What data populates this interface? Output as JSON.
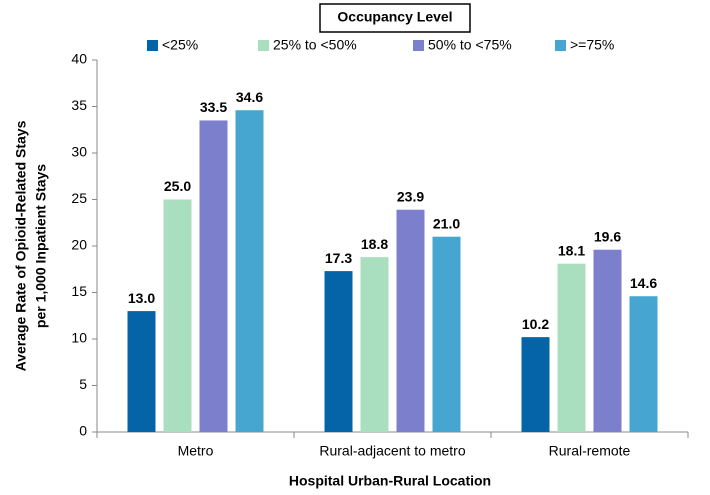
{
  "chart_data": {
    "type": "bar",
    "legend_title": "Occupancy Level",
    "xlabel": "Hospital Urban-Rural Location",
    "ylabel": [
      "Average Rate of Opioid-Related Stays",
      "per 1,000 Inpatient Stays"
    ],
    "categories": [
      "Metro",
      "Rural-adjacent to metro",
      "Rural-remote"
    ],
    "series": [
      {
        "name": "<25%",
        "color": "#0563a8",
        "values": [
          13,
          17.3,
          10.2
        ],
        "value_labels": [
          "13.0",
          "17.3",
          "10.2"
        ]
      },
      {
        "name": "25% to <50%",
        "color": "#a9dfbf",
        "values": [
          25,
          18.8,
          18.1
        ],
        "value_labels": [
          "25.0",
          "18.8",
          "18.1"
        ]
      },
      {
        "name": "50% to <75%",
        "color": "#7b7fcc",
        "values": [
          33.5,
          23.9,
          19.6
        ],
        "value_labels": [
          "33.5",
          "23.9",
          "19.6"
        ]
      },
      {
        "name": ">=75%",
        "color": "#46a6cf",
        "values": [
          34.6,
          21,
          14.6
        ],
        "value_labels": [
          "34.6",
          "21.0",
          "14.6"
        ]
      }
    ],
    "ylim": [
      0,
      40
    ],
    "yticks": [
      0,
      5,
      10,
      15,
      20,
      25,
      30,
      35,
      40
    ],
    "grid": false,
    "legend": "top"
  }
}
